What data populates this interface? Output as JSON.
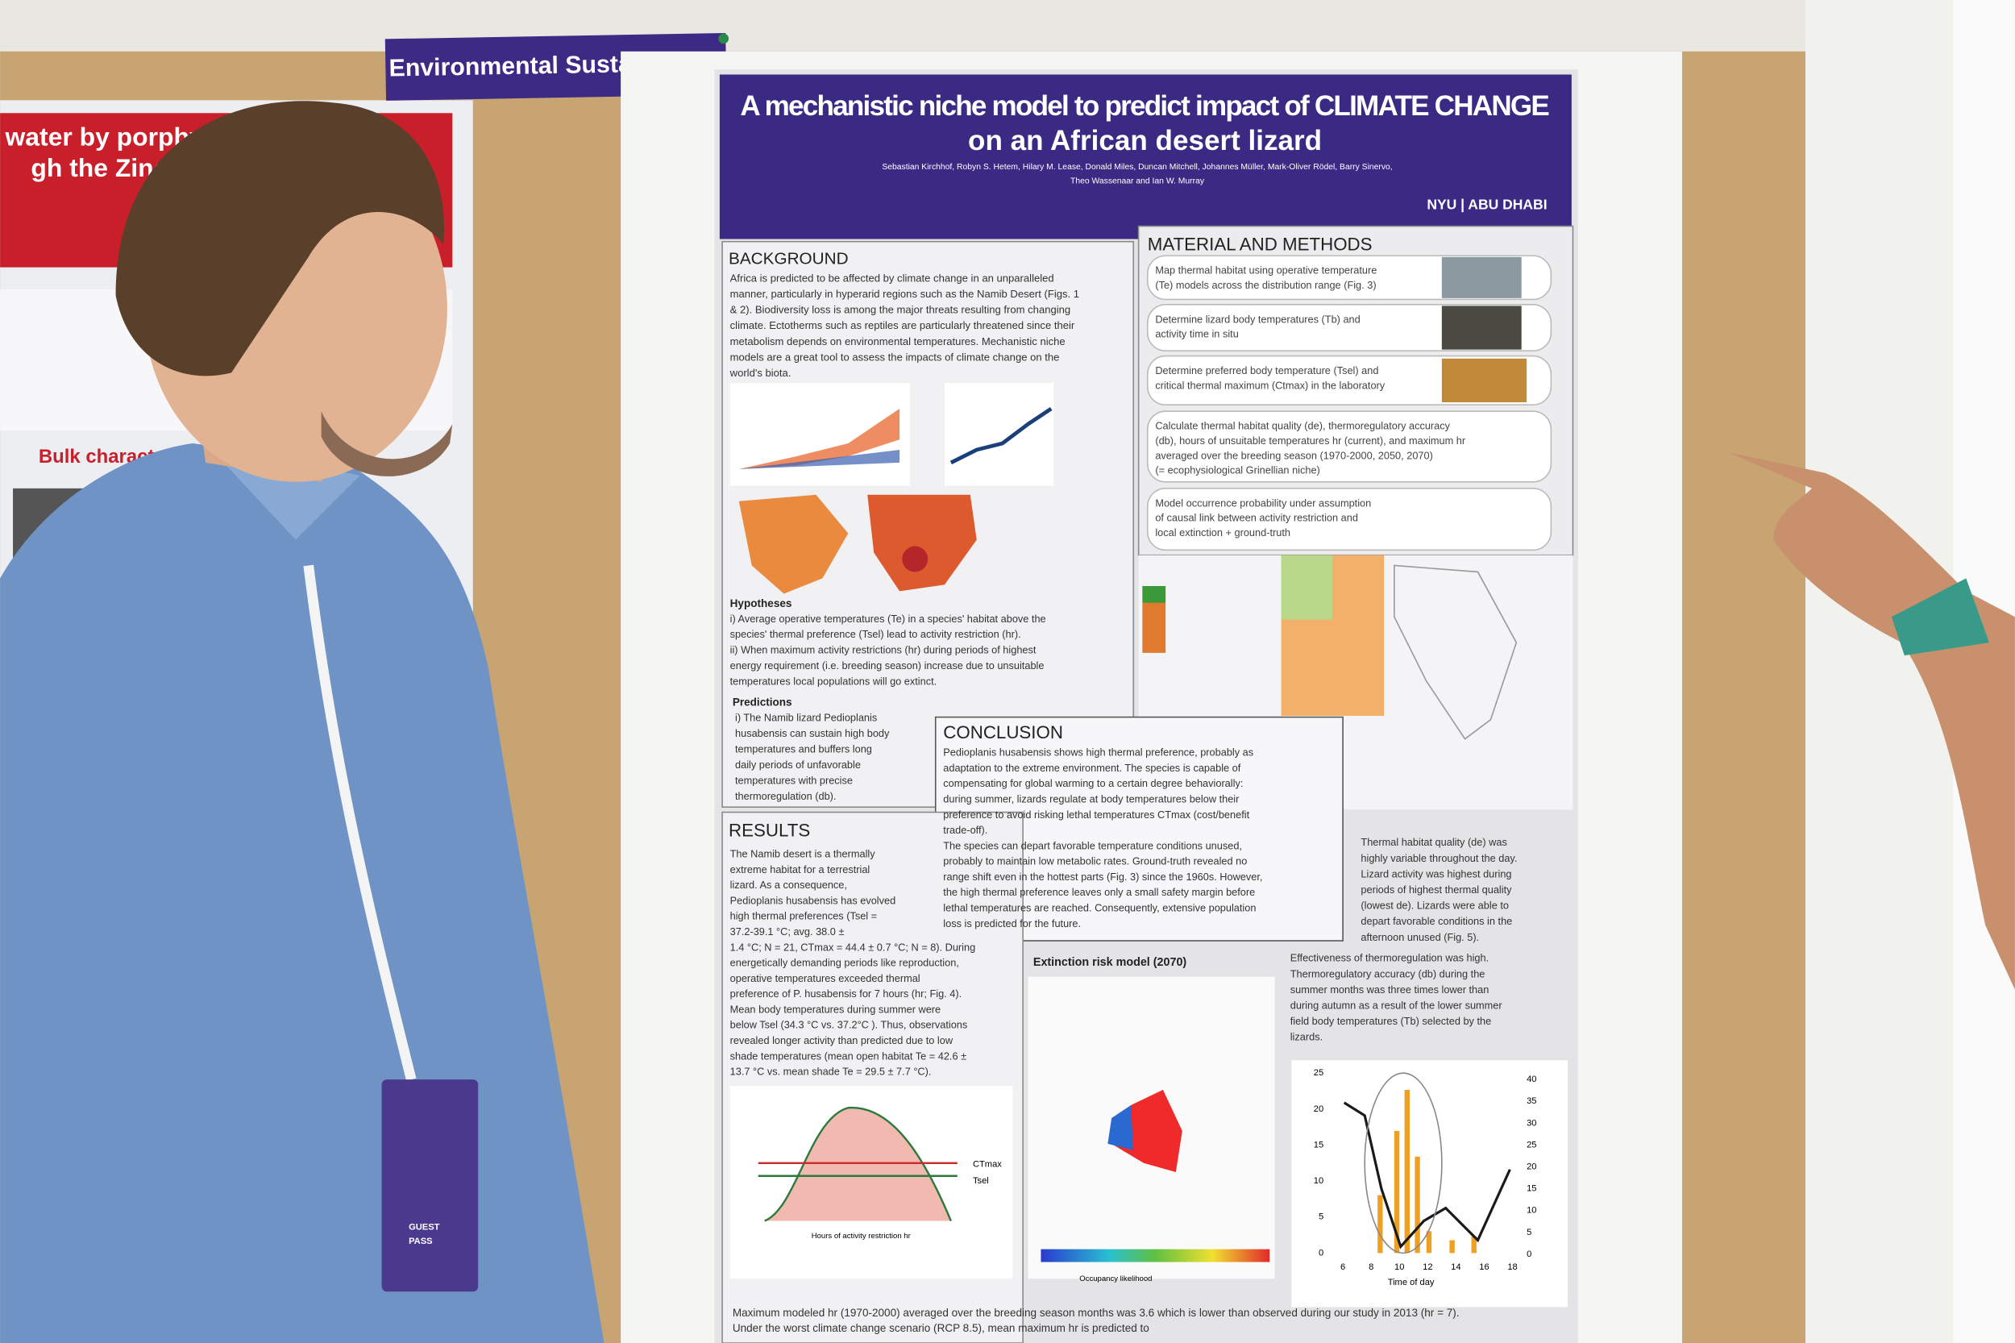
{
  "label": "Environmental Sustainability",
  "left_poster": {
    "title_lines": [
      "water by porphy",
      "gh the Zinc"
    ],
    "heading": "Bulk charact"
  },
  "poster": {
    "title_lines": [
      "A mechanistic niche model to predict impact of CLIMATE CHANGE",
      "on an African desert lizard"
    ],
    "authors": [
      "Sebastian Kirchhof, Robyn S. Hetem, Hilary M. Lease, Donald Miles, Duncan Mitchell, Johannes Müller, Mark-Oliver Rödel, Barry Sinervo,",
      "Theo Wassenaar and Ian W. Murray"
    ],
    "logo": "NYU | ABU DHABI",
    "background": {
      "heading": "BACKGROUND",
      "lines": [
        "Africa is predicted to be affected by climate change in an unparalleled",
        "manner, particularly in hyperarid regions such as the Namib Desert (Figs. 1",
        "& 2). Biodiversity loss is among the major threats resulting from changing",
        "climate. Ectotherms such as reptiles are particularly threatened since their",
        "metabolism depends on environmental temperatures. Mechanistic niche",
        "models are a great tool to assess the impacts of climate change on the",
        "world's biota."
      ],
      "hypotheses_heading": "Hypotheses",
      "hypotheses": [
        "i)   Average operative temperatures (Te) in a species' habitat above the",
        "     species' thermal preference (Tsel) lead to activity restriction (hr).",
        "ii)  When maximum activity restrictions (hr) during periods of highest",
        "     energy requirement (i.e. breeding season) increase due to unsuitable",
        "     temperatures local populations will go extinct."
      ],
      "predictions_heading": "Predictions",
      "predictions": [
        "i)  The Namib lizard Pedioplanis",
        "husabensis can sustain high body",
        "temperatures and buffers long",
        "daily periods of unfavorable",
        "temperatures with precise",
        "thermoregulation (db)."
      ]
    },
    "methods": {
      "heading": "MATERIAL AND METHODS",
      "items": [
        [
          "Map thermal habitat using operative temperature",
          "(Te) models across the distribution range (Fig. 3)"
        ],
        [
          "Determine lizard body temperatures (Tb) and",
          "activity time in situ"
        ],
        [
          "Determine preferred body temperature (Tsel) and",
          "critical thermal maximum (Ctmax) in the laboratory"
        ],
        [
          "Calculate thermal habitat quality (de), thermoregulatory accuracy",
          "(db), hours of unsuitable temperatures hr (current), and maximum hr",
          "averaged over the breeding season (1970-2000, 2050, 2070)",
          "(= ecophysiological Grinellian niche)"
        ],
        [
          "Model occurrence probability under assumption",
          "of causal link between activity restriction and",
          "local extinction + ground-truth"
        ]
      ]
    },
    "conclusion": {
      "heading": "CONCLUSION",
      "lines": [
        "Pedioplanis husabensis shows high thermal preference, probably as",
        "adaptation to the extreme environment. The species is capable of",
        "compensating for global warming to a certain degree behaviorally:",
        "during summer, lizards regulate at body temperatures below their",
        "preference to avoid risking lethal temperatures CTmax (cost/benefit",
        "trade-off).",
        "The species can depart favorable temperature conditions unused,",
        "probably to maintain low metabolic rates. Ground-truth revealed no",
        "range shift even in the hottest parts (Fig. 3) since the 1960s. However,",
        "the high thermal preference leaves only a small safety margin before",
        "lethal temperatures are reached. Consequently, extensive population",
        "loss is predicted for the future."
      ]
    },
    "results": {
      "heading": "RESULTS",
      "lines": [
        "The Namib desert is a thermally",
        "extreme habitat for a terrestrial",
        "lizard. As a consequence,",
        "Pedioplanis husabensis has evolved",
        "high thermal preferences (Tsel =",
        "37.2-39.1 °C; avg. 38.0 ±",
        "1.4 °C; N = 21, CTmax = 44.4 ± 0.7 °C; N = 8). During",
        "energetically demanding periods like reproduction,",
        "operative temperatures exceeded thermal",
        "preference of P. husabensis for 7 hours (hr; Fig. 4).",
        "Mean body temperatures during summer were",
        "below Tsel (34.3 °C vs. 37.2°C ). Thus, observations",
        "revealed longer activity than predicted due to low",
        "shade temperatures (mean open habitat Te = 42.6 ±",
        "13.7 °C vs. mean shade Te = 29.5 ± 7.7 °C)."
      ],
      "right_lines": [
        "Thermal habitat quality (de) was",
        "highly variable throughout the day.",
        "Lizard activity was highest during",
        "periods of highest thermal quality",
        "(lowest de). Lizards were able to",
        "depart favorable conditions in the",
        "afternoon unused (Fig. 5)."
      ],
      "effectiveness_lines": [
        "Effectiveness of thermoregulation was high.",
        "Thermoregulatory accuracy (db) during the",
        "summer months was three times lower than",
        "during autumn as a result of the lower summer",
        "field body temperatures (Tb) selected by the",
        "lizards."
      ],
      "extinction_title": "Extinction risk model (2070)",
      "occupancy_label": "Occupancy likelihood",
      "fig4_labels": [
        "CTmax",
        "Tsel"
      ],
      "fig4_xlabel": "Hours of activity restriction hr",
      "fig5": {
        "yticks_left": [
          "25",
          "20",
          "15",
          "10",
          "5",
          "0"
        ],
        "yticks_right": [
          "40",
          "35",
          "30",
          "25",
          "20",
          "15",
          "10",
          "5",
          "0"
        ],
        "xticks": [
          "6",
          "8",
          "10",
          "12",
          "14",
          "16",
          "18"
        ],
        "xlabel": "Time of day"
      },
      "bottom_lines": [
        "Maximum modeled hr (1970-2000) averaged over the breeding season months was 3.6 which is lower than observed during our study in 2013 (hr = 7).",
        "Under the worst climate change scenario (RCP 8.5), mean maximum hr is predicted to"
      ]
    }
  },
  "badge": [
    "GUEST",
    "PASS"
  ]
}
